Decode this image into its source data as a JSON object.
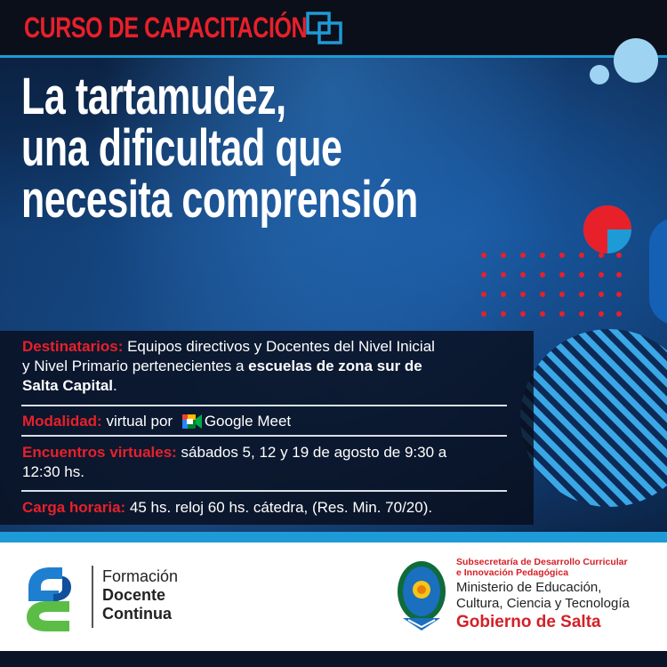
{
  "header": {
    "course_label": "CURSO DE CAPACITACIÓN"
  },
  "title": {
    "line1": "La tartamudez,",
    "line2": "una dificultad que",
    "line3": "necesita comprensión"
  },
  "info": {
    "recipients_label": "Destinatarios:",
    "recipients_text_1": " Equipos directivos y Docentes del Nivel Inicial",
    "recipients_text_2": "y Nivel Primario pertenecientes a ",
    "recipients_bold_1": "escuelas de zona sur de",
    "recipients_bold_2": "Salta Capital",
    "recipients_end": ".",
    "modality_label": "Modalidad:",
    "modality_text": " virtual por ",
    "meet_label": "Google Meet",
    "meetings_label": "Encuentros virtuales:",
    "meetings_text_1": " sábados 5, 12 y 19 de agosto de 9:30 a",
    "meetings_text_2": "12:30 hs.",
    "hours_label": "Carga horaria:",
    "hours_text": " 45 hs. reloj 60 hs. cátedra, (Res. Min. 70/20)."
  },
  "footer": {
    "fdc_line1": "Formación",
    "fdc_line2": "Docente",
    "fdc_line3": "Continua",
    "gov_sub_1": "Subsecretaría de Desarrollo Curricular",
    "gov_sub_2": "e Innovación Pedagógica",
    "gov_min_1": "Ministerio de Educación,",
    "gov_min_2": "Cultura, Ciencia y Tecnología",
    "gov_name": "Gobierno de Salta"
  },
  "colors": {
    "accent_red": "#e8202a",
    "accent_blue": "#1e9ad6",
    "light_blue": "#9fd3f2"
  }
}
